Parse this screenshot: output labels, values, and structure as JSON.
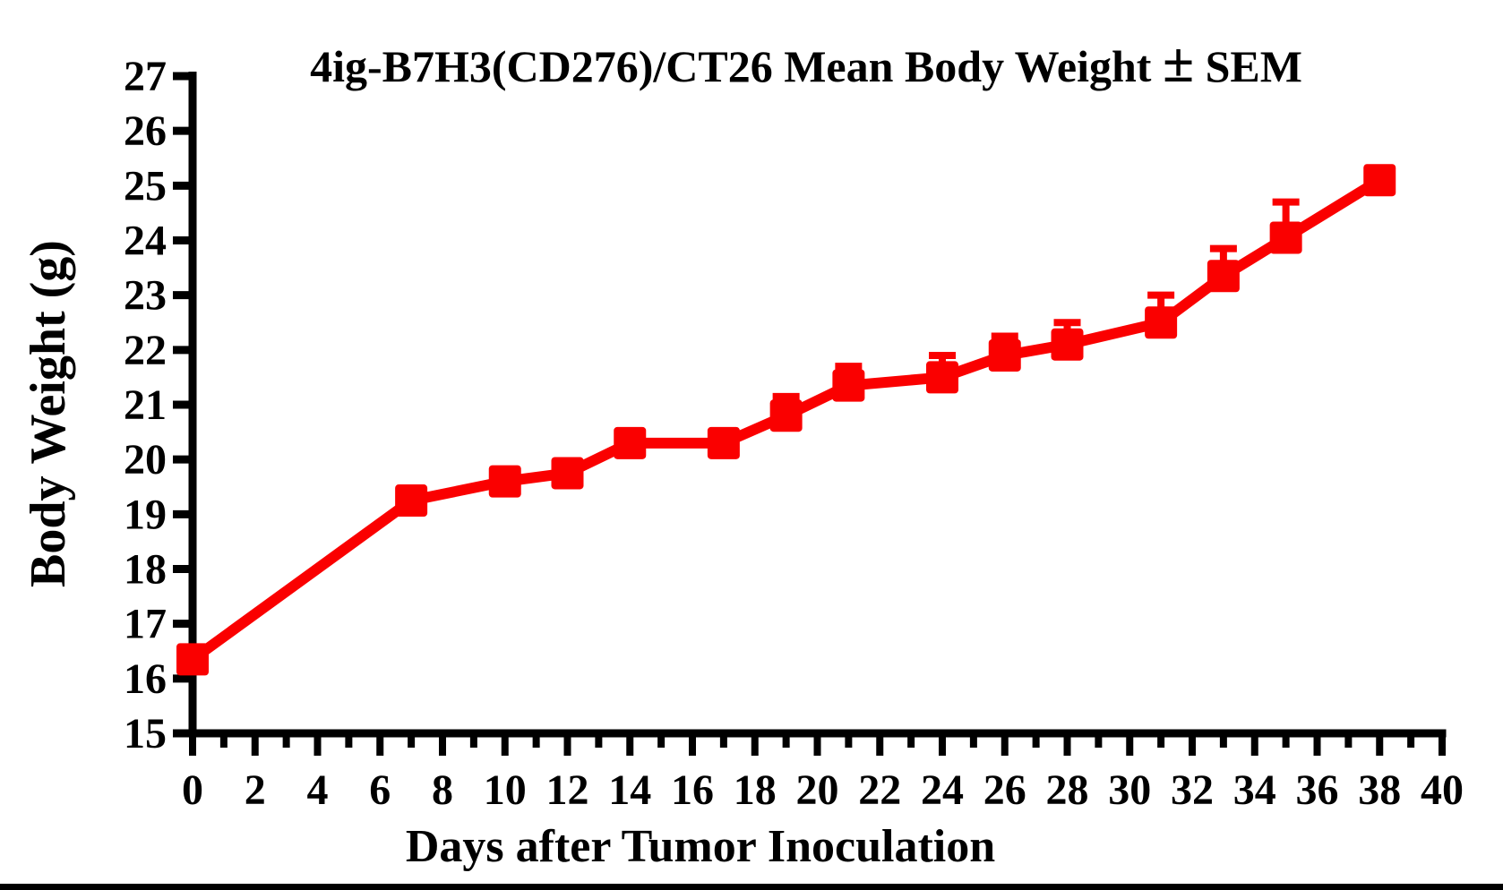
{
  "chart_data": {
    "type": "line",
    "title": "4ig-B7H3(CD276)/CT26 Mean Body Weight ± SEM",
    "xlabel": "Days after Tumor Inoculation",
    "ylabel": "Body Weight (g)",
    "xlim": [
      0,
      40
    ],
    "ylim": [
      15,
      27
    ],
    "x_major_tick_step": 2,
    "x_minor_tick_step": 1,
    "y_tick_step": 1,
    "x_tick_labels": [
      0,
      2,
      4,
      6,
      8,
      10,
      12,
      14,
      16,
      18,
      20,
      22,
      24,
      26,
      28,
      30,
      32,
      34,
      36,
      38,
      40
    ],
    "y_tick_labels": [
      15,
      16,
      17,
      18,
      19,
      20,
      21,
      22,
      23,
      24,
      25,
      26,
      27
    ],
    "grid": false,
    "legend": false,
    "error_bars": "upper SEM caps only",
    "series": [
      {
        "name": "Mean Body Weight (g)",
        "color": "#fa0000",
        "marker": "square",
        "x": [
          0,
          7,
          10,
          12,
          14,
          17,
          19,
          21,
          24,
          26,
          28,
          31,
          33,
          35,
          38
        ],
        "y": [
          16.35,
          19.25,
          19.6,
          19.75,
          20.3,
          20.3,
          20.8,
          21.35,
          21.5,
          21.9,
          22.1,
          22.5,
          23.35,
          24.05,
          25.1
        ],
        "sem_upper": [
          0,
          0,
          0,
          0,
          0,
          0,
          0.35,
          0.35,
          0.4,
          0.35,
          0.4,
          0.5,
          0.5,
          0.65,
          0
        ]
      }
    ],
    "axis_color": "#000000",
    "background_color": "#ffffff"
  },
  "page": {
    "bottom_border_color": "#000000"
  }
}
